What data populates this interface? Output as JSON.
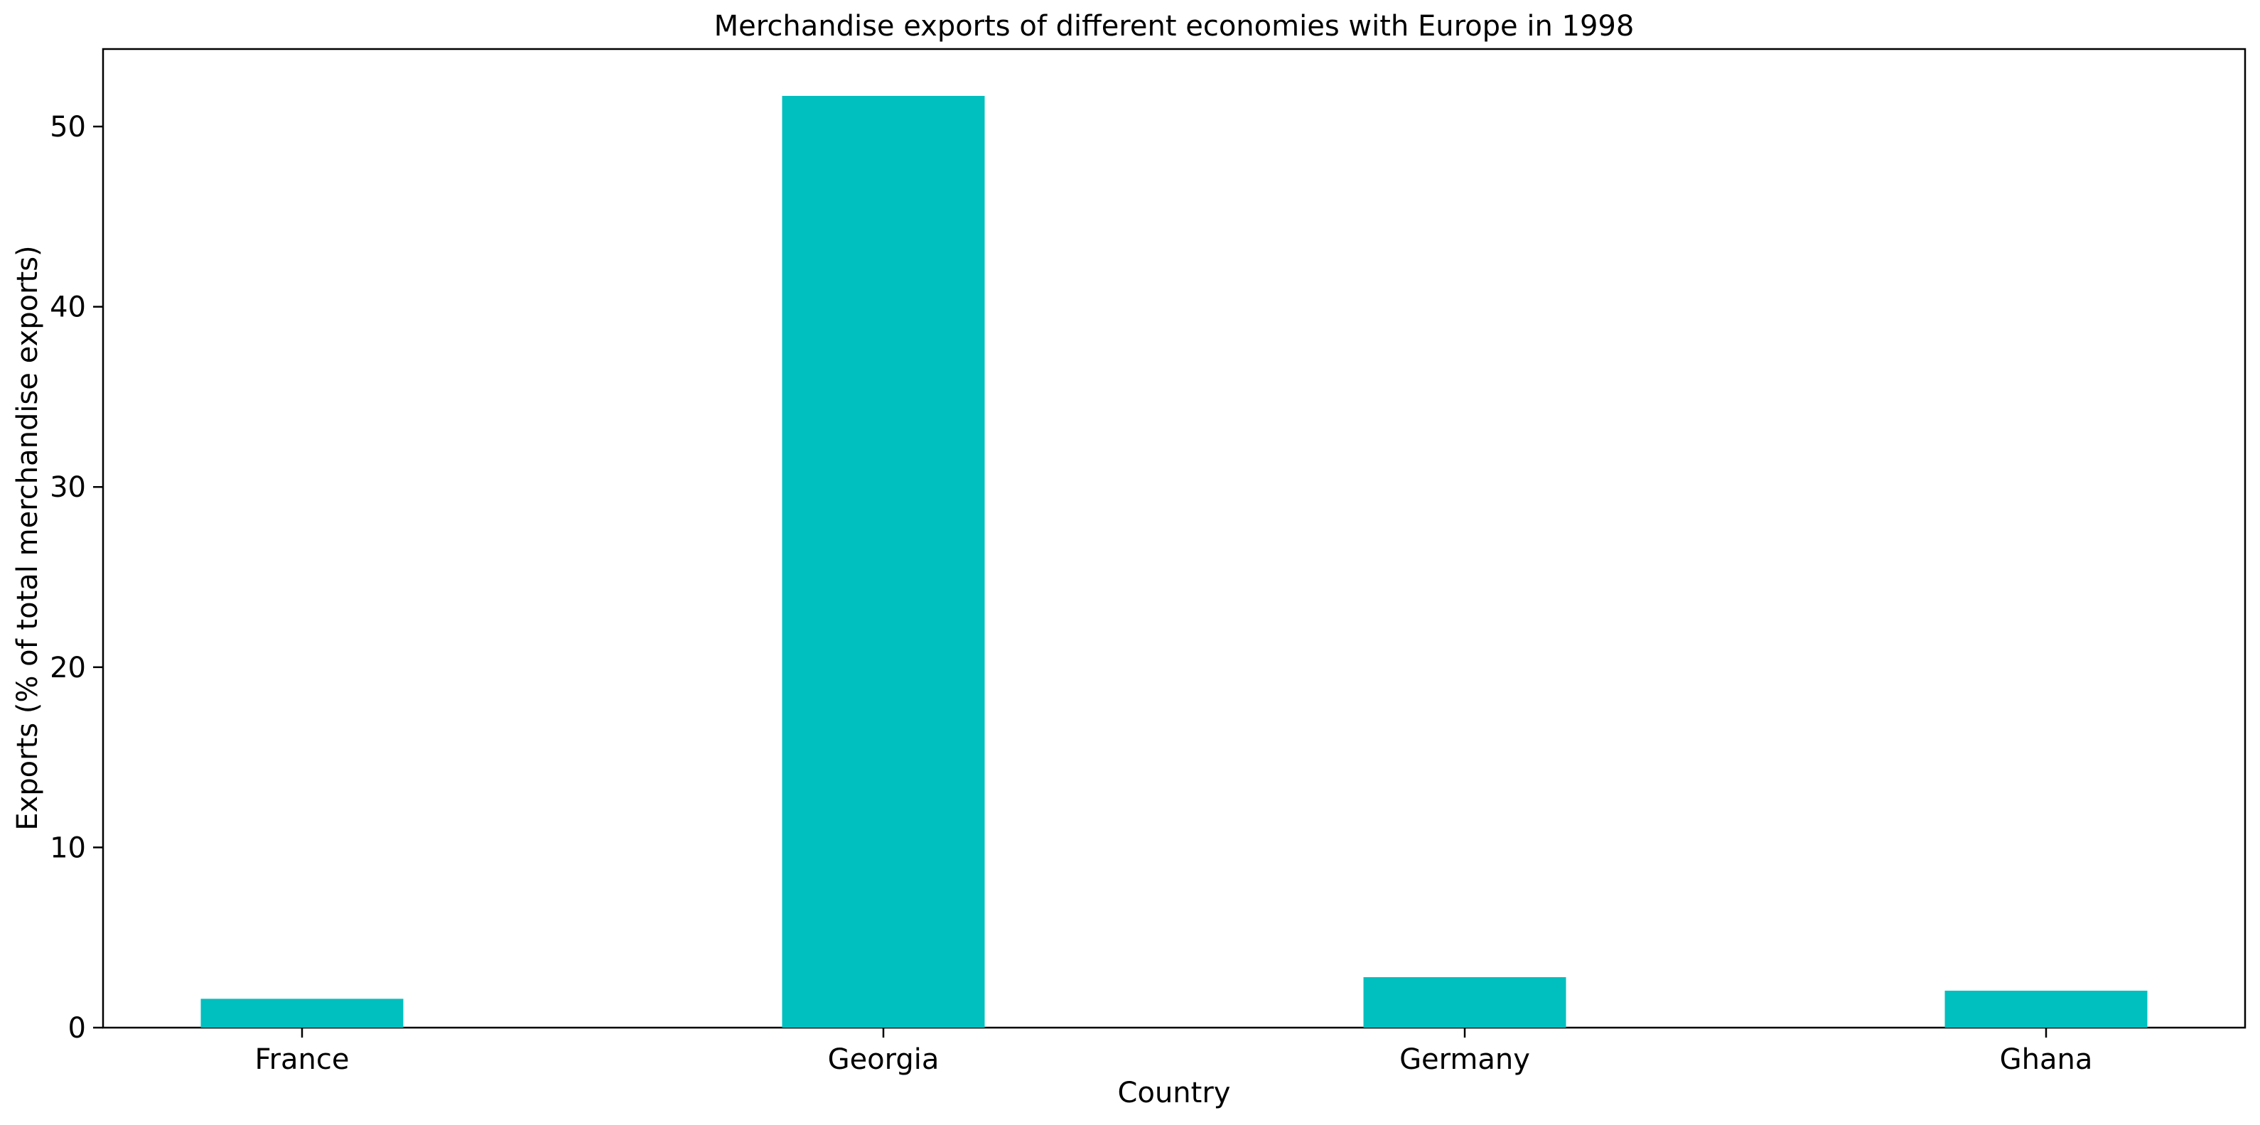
{
  "chart_data": {
    "type": "bar",
    "title": "Merchandise exports of different economies with Europe in 1998",
    "xlabel": "Country",
    "ylabel": "Exports (% of total merchandise exports)",
    "categories": [
      "France",
      "Georgia",
      "Germany",
      "Ghana"
    ],
    "values": [
      1.6,
      51.7,
      2.8,
      2.05
    ],
    "ylim": [
      0,
      54.3
    ],
    "yticks": [
      0,
      10,
      20,
      30,
      40,
      50
    ],
    "grid": false,
    "legend": "none",
    "bar_color": "#00bfbf"
  }
}
